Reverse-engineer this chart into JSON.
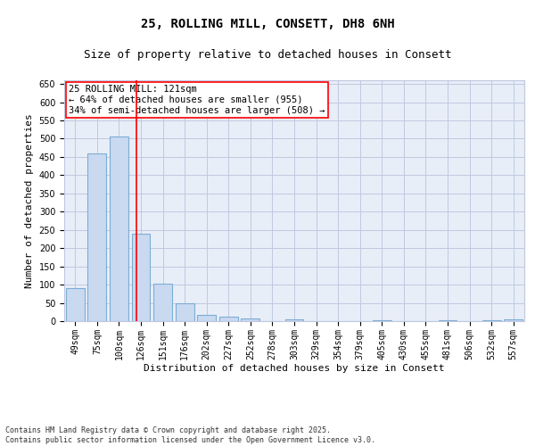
{
  "title": "25, ROLLING MILL, CONSETT, DH8 6NH",
  "subtitle": "Size of property relative to detached houses in Consett",
  "xlabel": "Distribution of detached houses by size in Consett",
  "ylabel": "Number of detached properties",
  "categories": [
    "49sqm",
    "75sqm",
    "100sqm",
    "126sqm",
    "151sqm",
    "176sqm",
    "202sqm",
    "227sqm",
    "252sqm",
    "278sqm",
    "303sqm",
    "329sqm",
    "354sqm",
    "379sqm",
    "405sqm",
    "430sqm",
    "455sqm",
    "481sqm",
    "506sqm",
    "532sqm",
    "557sqm"
  ],
  "values": [
    90,
    460,
    507,
    240,
    103,
    48,
    18,
    13,
    8,
    0,
    5,
    0,
    0,
    0,
    3,
    0,
    0,
    3,
    0,
    3,
    5
  ],
  "bar_color": "#c9d9f0",
  "bar_edge_color": "#7dadd4",
  "bar_linewidth": 0.8,
  "grid_color": "#c0c8e0",
  "background_color": "#e8eef8",
  "annotation_text": "25 ROLLING MILL: 121sqm\n← 64% of detached houses are smaller (955)\n34% of semi-detached houses are larger (508) →",
  "footer": "Contains HM Land Registry data © Crown copyright and database right 2025.\nContains public sector information licensed under the Open Government Licence v3.0.",
  "ylim": [
    0,
    660
  ],
  "yticks": [
    0,
    50,
    100,
    150,
    200,
    250,
    300,
    350,
    400,
    450,
    500,
    550,
    600,
    650
  ],
  "title_fontsize": 10,
  "subtitle_fontsize": 9,
  "axis_label_fontsize": 8,
  "tick_fontsize": 7,
  "annotation_fontsize": 7.5,
  "footer_fontsize": 6
}
